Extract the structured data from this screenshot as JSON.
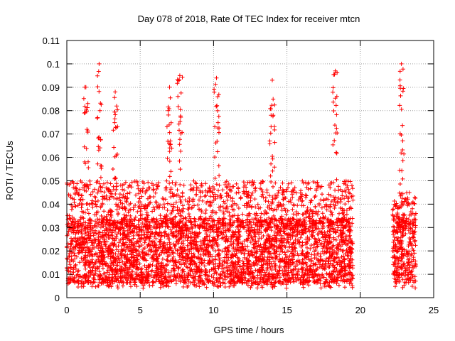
{
  "chart_data": {
    "type": "scatter",
    "title": "Day 078 of 2018, Rate Of TEC Index for receiver mtcn",
    "xlabel": "GPS time / hours",
    "ylabel": "ROTI / TECUs",
    "xlim": [
      0,
      25
    ],
    "ylim": [
      0,
      0.11
    ],
    "x_ticks": [
      "0",
      "5",
      "10",
      "15",
      "20",
      "25"
    ],
    "y_ticks": [
      "0",
      "0.01",
      "0.02",
      "0.03",
      "0.04",
      "0.05",
      "0.06",
      "0.07",
      "0.08",
      "0.09",
      "0.1",
      "0.11"
    ],
    "grid": true,
    "marker": "plus",
    "color": "#ff0000",
    "series": [
      {
        "segments": [
          {
            "x_range": [
              0.0,
              19.5
            ],
            "typical": [
              0.01,
              0.03
            ],
            "upper": 0.05
          },
          {
            "x_range": [
              22.2,
              23.8
            ],
            "typical": [
              0.01,
              0.03
            ],
            "upper": 0.045
          }
        ],
        "peaks": [
          {
            "x": 1.3,
            "y": 0.09
          },
          {
            "x": 2.2,
            "y": 0.1
          },
          {
            "x": 3.3,
            "y": 0.088
          },
          {
            "x": 7.0,
            "y": 0.09
          },
          {
            "x": 7.7,
            "y": 0.095
          },
          {
            "x": 10.2,
            "y": 0.094
          },
          {
            "x": 14.0,
            "y": 0.093
          },
          {
            "x": 18.3,
            "y": 0.097
          },
          {
            "x": 22.8,
            "y": 0.1
          }
        ]
      }
    ]
  }
}
